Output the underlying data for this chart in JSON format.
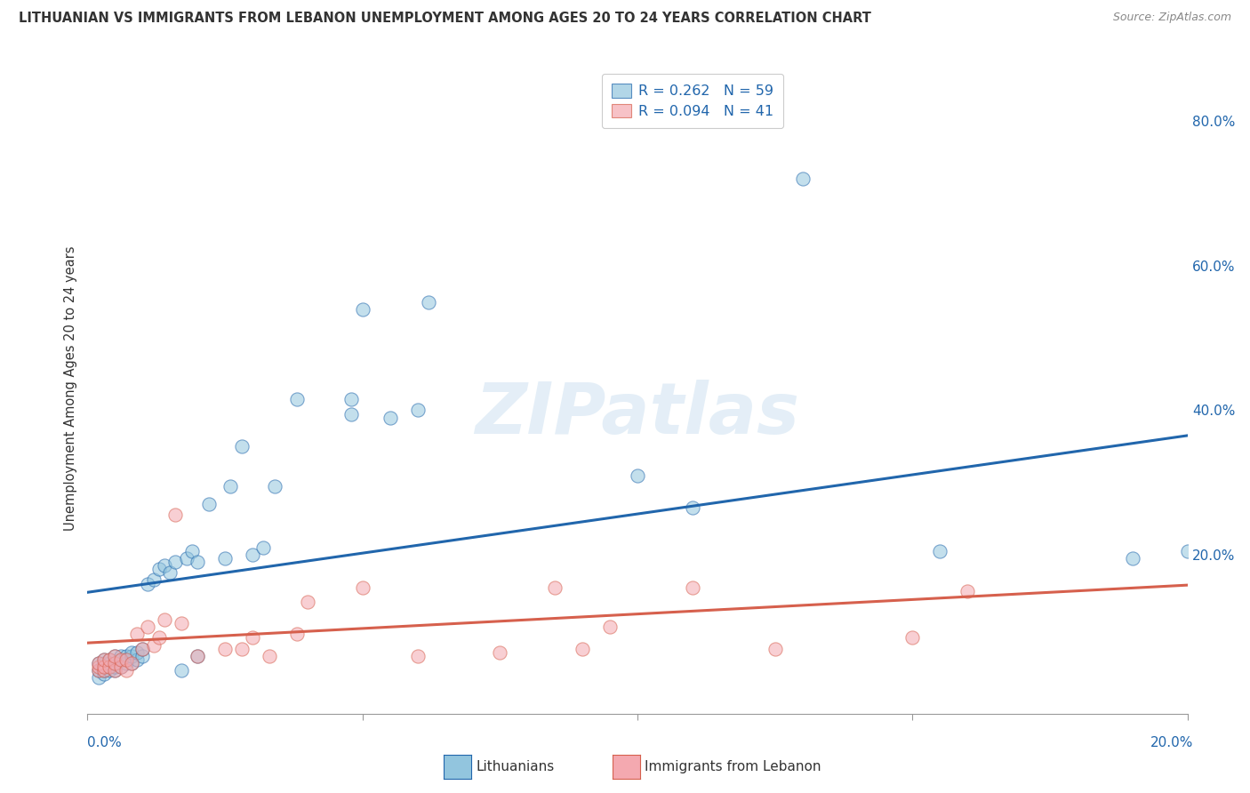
{
  "title": "LITHUANIAN VS IMMIGRANTS FROM LEBANON UNEMPLOYMENT AMONG AGES 20 TO 24 YEARS CORRELATION CHART",
  "source": "Source: ZipAtlas.com",
  "ylabel": "Unemployment Among Ages 20 to 24 years",
  "legend1_label": "Lithuanians",
  "legend2_label": "Immigrants from Lebanon",
  "color_blue": "#92c5de",
  "color_pink": "#f4a9b0",
  "line_blue": "#2166ac",
  "line_pink": "#d6604d",
  "xlim": [
    0.0,
    0.2
  ],
  "ylim": [
    -0.02,
    0.88
  ],
  "right_yticks": [
    0.2,
    0.4,
    0.6,
    0.8
  ],
  "right_yticklabels": [
    "20.0%",
    "40.0%",
    "60.0%",
    "80.0%"
  ],
  "blue_line_x": [
    0.0,
    0.2
  ],
  "blue_line_y": [
    0.148,
    0.365
  ],
  "pink_line_x": [
    0.0,
    0.2
  ],
  "pink_line_y": [
    0.078,
    0.158
  ],
  "blue_scatter_x": [
    0.002,
    0.002,
    0.002,
    0.003,
    0.003,
    0.003,
    0.003,
    0.003,
    0.004,
    0.004,
    0.004,
    0.004,
    0.005,
    0.005,
    0.005,
    0.005,
    0.006,
    0.006,
    0.006,
    0.007,
    0.007,
    0.007,
    0.008,
    0.008,
    0.008,
    0.009,
    0.009,
    0.01,
    0.01,
    0.011,
    0.012,
    0.013,
    0.014,
    0.015,
    0.016,
    0.017,
    0.018,
    0.019,
    0.02,
    0.02,
    0.022,
    0.025,
    0.026,
    0.028,
    0.03,
    0.032,
    0.034,
    0.038,
    0.048,
    0.048,
    0.05,
    0.055,
    0.06,
    0.062,
    0.1,
    0.11,
    0.13,
    0.155,
    0.19,
    0.2
  ],
  "blue_scatter_y": [
    0.03,
    0.04,
    0.05,
    0.035,
    0.04,
    0.045,
    0.05,
    0.055,
    0.04,
    0.045,
    0.05,
    0.055,
    0.04,
    0.045,
    0.05,
    0.06,
    0.045,
    0.055,
    0.06,
    0.05,
    0.055,
    0.06,
    0.05,
    0.06,
    0.065,
    0.055,
    0.065,
    0.06,
    0.07,
    0.16,
    0.165,
    0.18,
    0.185,
    0.175,
    0.19,
    0.04,
    0.195,
    0.205,
    0.06,
    0.19,
    0.27,
    0.195,
    0.295,
    0.35,
    0.2,
    0.21,
    0.295,
    0.415,
    0.395,
    0.415,
    0.54,
    0.39,
    0.4,
    0.55,
    0.31,
    0.265,
    0.72,
    0.205,
    0.195,
    0.205
  ],
  "pink_scatter_x": [
    0.002,
    0.002,
    0.002,
    0.003,
    0.003,
    0.003,
    0.004,
    0.004,
    0.005,
    0.005,
    0.005,
    0.006,
    0.006,
    0.007,
    0.007,
    0.008,
    0.009,
    0.01,
    0.011,
    0.012,
    0.013,
    0.014,
    0.016,
    0.017,
    0.02,
    0.025,
    0.028,
    0.03,
    0.033,
    0.038,
    0.04,
    0.05,
    0.06,
    0.075,
    0.085,
    0.09,
    0.095,
    0.11,
    0.125,
    0.15,
    0.16
  ],
  "pink_scatter_y": [
    0.04,
    0.045,
    0.05,
    0.04,
    0.045,
    0.055,
    0.045,
    0.055,
    0.04,
    0.05,
    0.06,
    0.045,
    0.055,
    0.04,
    0.055,
    0.05,
    0.09,
    0.07,
    0.1,
    0.075,
    0.085,
    0.11,
    0.255,
    0.105,
    0.06,
    0.07,
    0.07,
    0.085,
    0.06,
    0.09,
    0.135,
    0.155,
    0.06,
    0.065,
    0.155,
    0.07,
    0.1,
    0.155,
    0.07,
    0.085,
    0.15
  ]
}
